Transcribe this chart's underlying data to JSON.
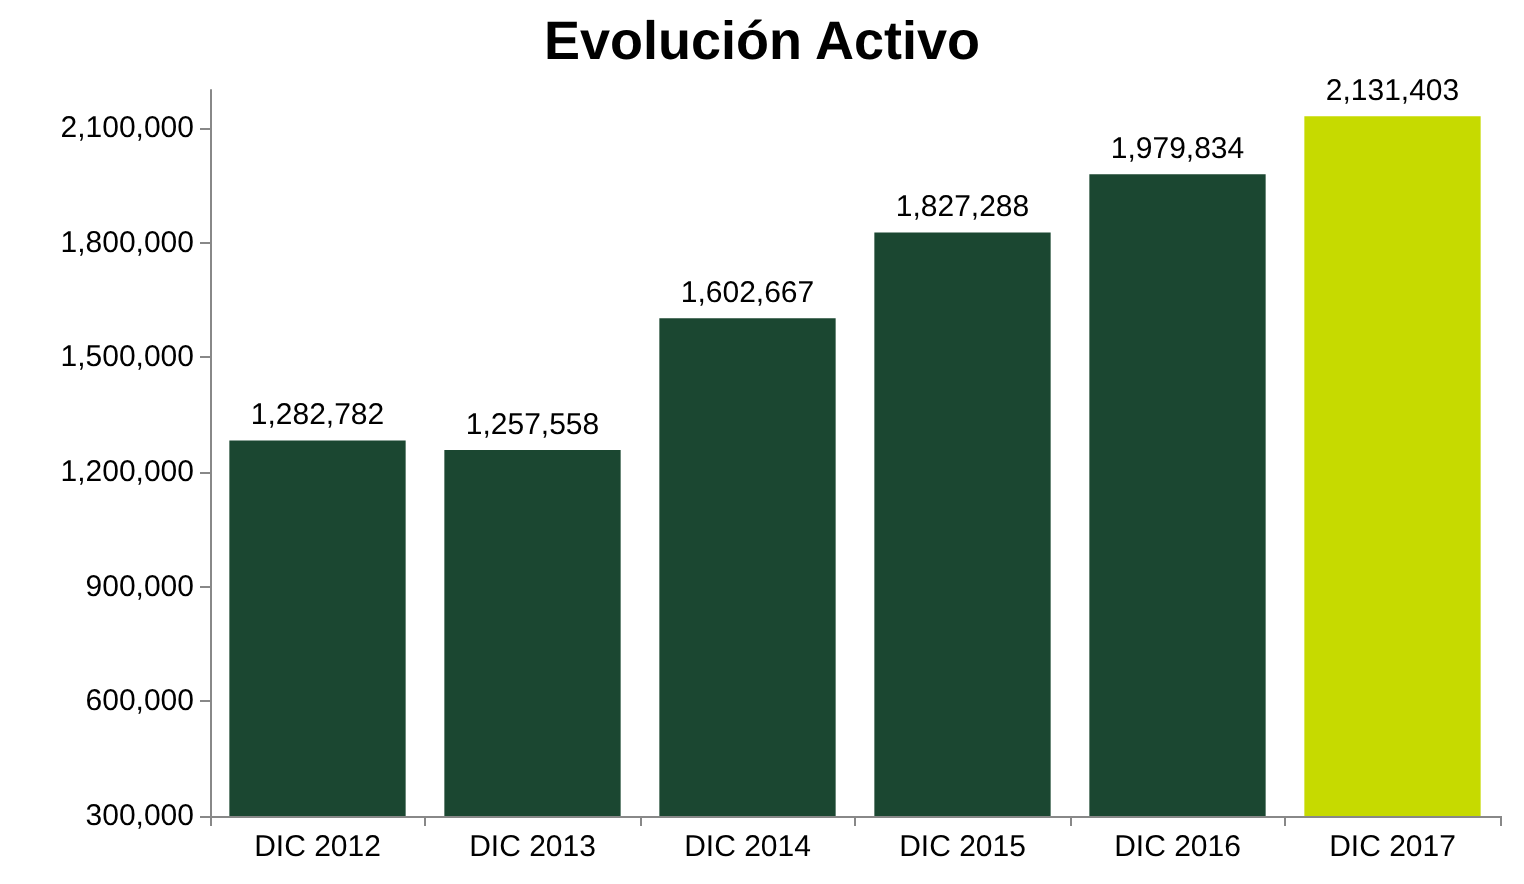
{
  "chart_data": {
    "type": "bar",
    "title": "Evolución Activo",
    "categories": [
      "DIC 2012",
      "DIC 2013",
      "DIC 2014",
      "DIC 2015",
      "DIC 2016",
      "DIC 2017"
    ],
    "values": [
      1282782,
      1257558,
      1602667,
      1827288,
      1979834,
      2131403
    ],
    "value_labels": [
      "1,282,782",
      "1,257,558",
      "1,602,667",
      "1,827,288",
      "1,979,834",
      "2,131,403"
    ],
    "colors": [
      "#1b4731",
      "#1b4731",
      "#1b4731",
      "#1b4731",
      "#1b4731",
      "#c6da00"
    ],
    "ylim": [
      300000,
      2200000
    ],
    "yticks": [
      {
        "value": 300000,
        "label": "300,000"
      },
      {
        "value": 600000,
        "label": "600,000"
      },
      {
        "value": 900000,
        "label": "900,000"
      },
      {
        "value": 1200000,
        "label": "1,200,000"
      },
      {
        "value": 1500000,
        "label": "1,500,000"
      },
      {
        "value": 1800000,
        "label": "1,800,000"
      },
      {
        "value": 2100000,
        "label": "2,100,000"
      }
    ],
    "grid": false
  }
}
